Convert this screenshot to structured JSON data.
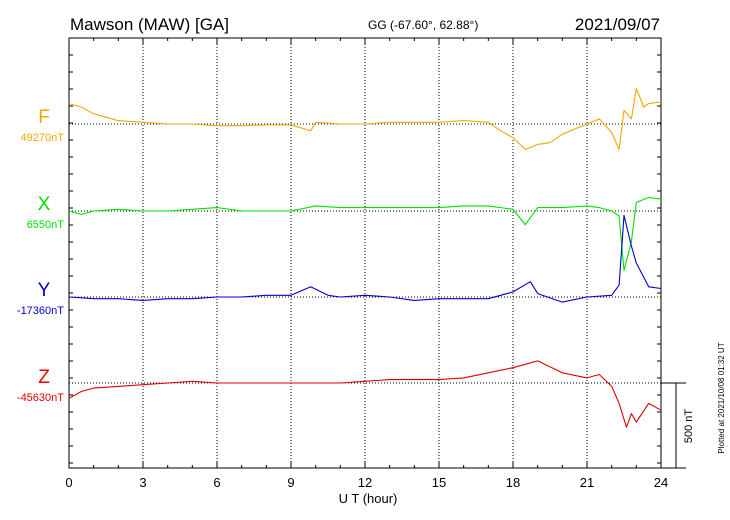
{
  "header": {
    "station": "Mawson (MAW)  [GA]",
    "coords": "GG (-67.60°,  62.88°)",
    "date": "2021/09/07"
  },
  "footer": {
    "plotted": "Plotted at 2021/10/08 01:32 UT"
  },
  "chart_data": {
    "type": "line",
    "xlabel": "U T (hour)",
    "xlim": [
      0,
      24
    ],
    "xticks": [
      "0",
      "3",
      "6",
      "9",
      "12",
      "15",
      "18",
      "21",
      "24"
    ],
    "scale_bar": {
      "label": "500 nT",
      "value_nT": 500
    },
    "grid": "dotted vertical every 3 h",
    "series": [
      {
        "name": "F",
        "baseline_label": "49270nT",
        "baseline_nT": 49270,
        "color": "#f0a800",
        "x": [
          0,
          0.5,
          1,
          1.5,
          2,
          3,
          4,
          5,
          6,
          7,
          8,
          9,
          9.8,
          10,
          11,
          12,
          13,
          14,
          15,
          16,
          17,
          17.5,
          18,
          18.5,
          19,
          19.5,
          20,
          21,
          21.5,
          22,
          22.3,
          22.5,
          22.8,
          23,
          23.3,
          23.5,
          24
        ],
        "values": [
          120,
          100,
          60,
          40,
          20,
          10,
          0,
          0,
          -10,
          -10,
          -5,
          -5,
          -40,
          10,
          0,
          0,
          10,
          10,
          10,
          20,
          10,
          -40,
          -80,
          -150,
          -120,
          -110,
          -60,
          0,
          30,
          -50,
          -150,
          80,
          30,
          210,
          100,
          120,
          130
        ]
      },
      {
        "name": "X",
        "baseline_label": "6550nT",
        "baseline_nT": 6550,
        "color": "#00e000",
        "x": [
          0,
          0.5,
          1,
          2,
          3,
          4,
          5,
          6,
          7,
          8,
          9,
          10,
          11,
          12,
          13,
          14,
          15,
          16,
          17,
          18,
          18.5,
          19,
          20,
          21,
          21.5,
          22,
          22.3,
          22.5,
          22.8,
          23,
          23.5,
          24
        ],
        "values": [
          0,
          -20,
          0,
          10,
          0,
          0,
          10,
          20,
          0,
          0,
          0,
          30,
          20,
          20,
          20,
          20,
          20,
          30,
          30,
          10,
          -80,
          20,
          20,
          30,
          20,
          0,
          -30,
          -350,
          -180,
          50,
          80,
          70
        ]
      },
      {
        "name": "Y",
        "baseline_label": "-17360nT",
        "baseline_nT": -17360,
        "color": "#0000d0",
        "x": [
          0,
          1,
          2,
          3,
          4,
          5,
          6,
          7,
          8,
          9,
          9.8,
          10.5,
          11,
          12,
          13,
          14,
          15,
          16,
          17,
          18,
          18.7,
          19,
          20,
          21,
          22,
          22.3,
          22.5,
          22.8,
          23,
          23.5,
          24
        ],
        "values": [
          0,
          -10,
          -10,
          -20,
          -10,
          -10,
          0,
          0,
          10,
          10,
          60,
          10,
          0,
          10,
          0,
          -20,
          -10,
          -10,
          -10,
          30,
          90,
          20,
          -30,
          0,
          10,
          70,
          480,
          300,
          200,
          60,
          50
        ]
      },
      {
        "name": "Z",
        "baseline_label": "-45630nT",
        "baseline_nT": -45630,
        "color": "#e00000",
        "x": [
          0,
          0.5,
          1,
          2,
          3,
          4,
          5,
          6,
          7,
          8,
          9,
          10,
          11,
          12,
          13,
          14,
          15,
          16,
          17,
          18,
          18.5,
          19,
          20,
          21,
          21.5,
          22,
          22.3,
          22.6,
          22.8,
          23,
          23.5,
          24
        ],
        "values": [
          -90,
          -50,
          -30,
          -20,
          -10,
          0,
          10,
          0,
          0,
          0,
          0,
          0,
          0,
          10,
          20,
          20,
          20,
          30,
          60,
          90,
          110,
          130,
          60,
          30,
          50,
          -20,
          -120,
          -260,
          -180,
          -230,
          -120,
          -160
        ]
      }
    ]
  }
}
